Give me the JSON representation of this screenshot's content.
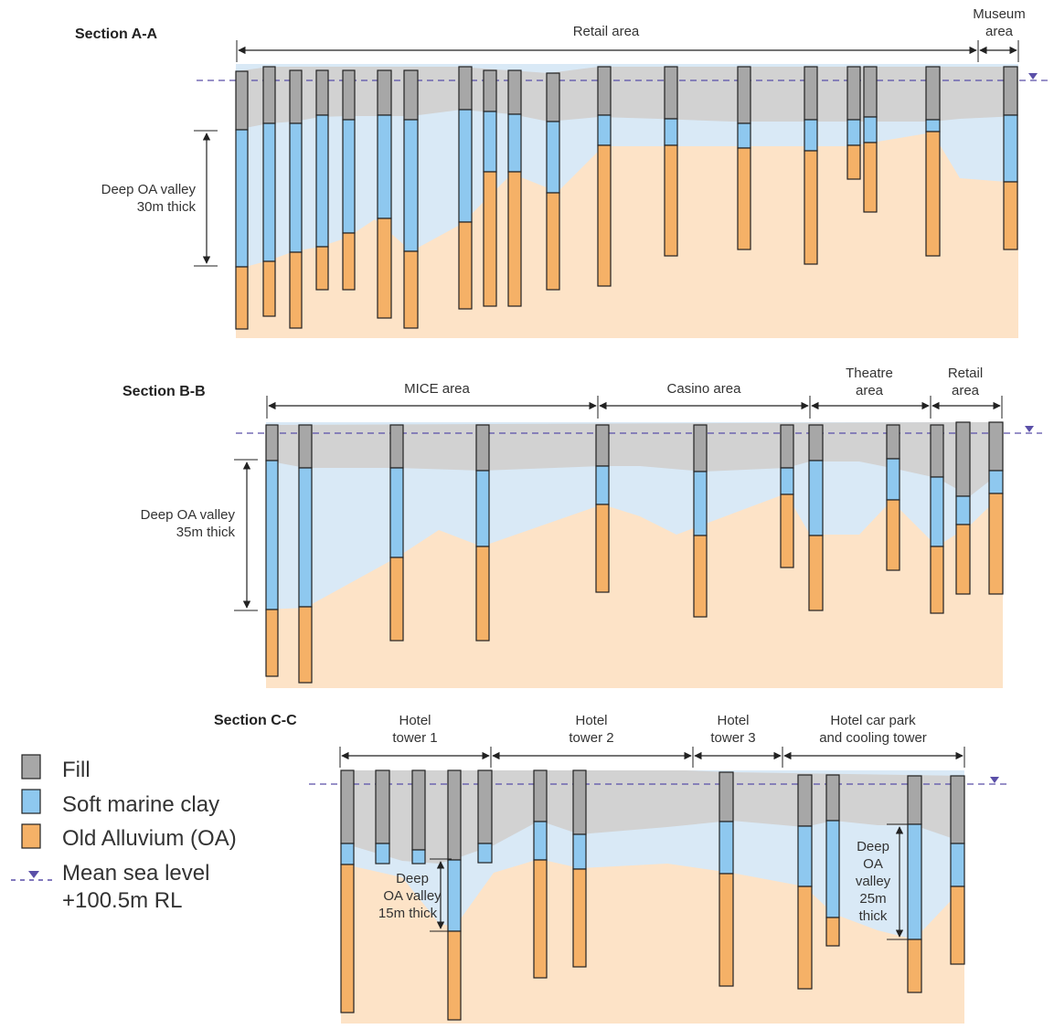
{
  "colors": {
    "fill": "#a7a7a7",
    "soft_clay": "#8ec8ef",
    "old_alluvium": "#f5b167",
    "band_fill": "#d2d2d2",
    "band_clay": "#d9e9f6",
    "band_oa": "#fde3c7",
    "sea_level": "#5a4fa8"
  },
  "legend": {
    "fill": "Fill",
    "soft_clay": "Soft marine clay",
    "old_alluvium": "Old Alluvium (OA)",
    "sea_level_1": "Mean sea level",
    "sea_level_2": "+100.5m RL"
  },
  "sections": [
    {
      "title": "Section A-A",
      "areas": [
        {
          "lines": [
            "Retail area"
          ]
        },
        {
          "lines": [
            "Museum",
            "area"
          ]
        }
      ],
      "note": [
        "Deep OA valley",
        "30m thick"
      ]
    },
    {
      "title": "Section B-B",
      "areas": [
        {
          "lines": [
            "MICE area"
          ]
        },
        {
          "lines": [
            "Casino area"
          ]
        },
        {
          "lines": [
            "Theatre",
            "area"
          ]
        },
        {
          "lines": [
            "Retail",
            "area"
          ]
        }
      ],
      "note": [
        "Deep OA valley",
        "35m thick"
      ]
    },
    {
      "title": "Section C-C",
      "areas": [
        {
          "lines": [
            "Hotel",
            "tower 1"
          ]
        },
        {
          "lines": [
            "Hotel",
            "tower 2"
          ]
        },
        {
          "lines": [
            "Hotel",
            "tower 3"
          ]
        },
        {
          "lines": [
            "Hotel car park",
            "and cooling tower"
          ]
        }
      ],
      "notes": [
        [
          "Deep",
          "OA valley",
          "15m thick"
        ],
        [
          "Deep",
          "OA",
          "valley",
          "25m",
          "thick"
        ]
      ]
    }
  ]
}
